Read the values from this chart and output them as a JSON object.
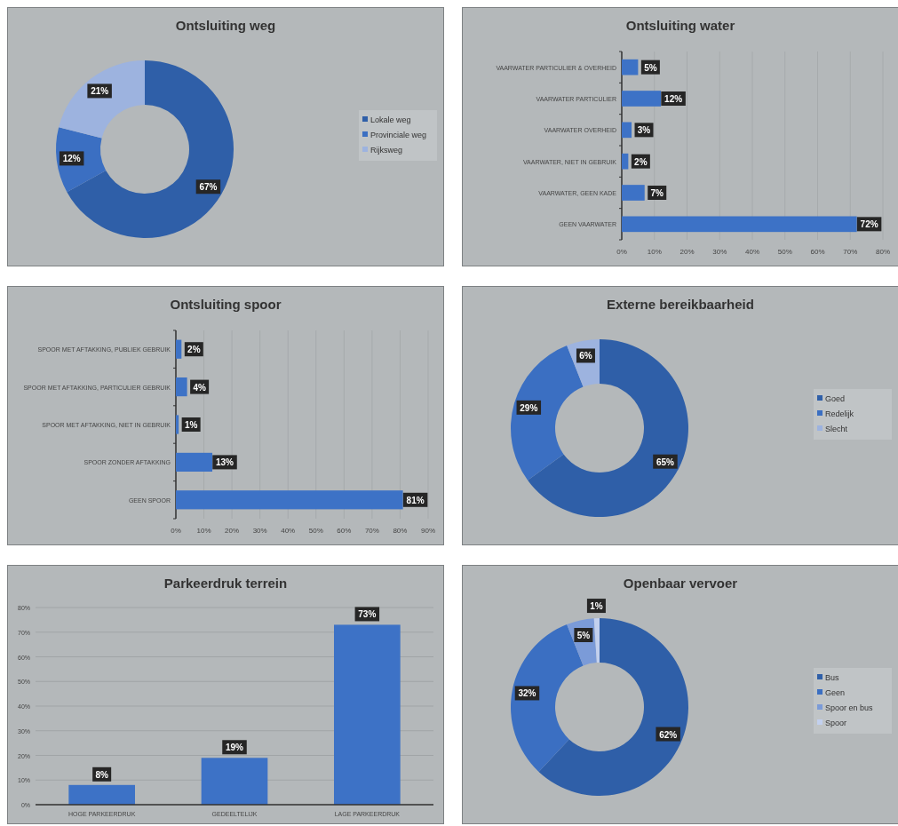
{
  "chart_data": [
    {
      "type": "donut",
      "title": "Ontsluiting weg",
      "categories": [
        "Lokale weg",
        "Provinciale weg",
        "Rijksweg"
      ],
      "values": [
        67,
        12,
        21
      ],
      "colors": [
        "#2f5fa8",
        "#3b6fc2",
        "#9db3df"
      ],
      "value_labels": [
        "67%",
        "12%",
        "21%"
      ],
      "legend": "right"
    },
    {
      "type": "bar",
      "orientation": "horizontal",
      "title": "Ontsluiting water",
      "categories": [
        "VAARWATER PARTICULIER & OVERHEID",
        "VAARWATER PARTICULIER",
        "VAARWATER OVERHEID",
        "VAARWATER, NIET IN GEBRUIK",
        "VAARWATER, GEEN KADE",
        "GEEN VAARWATER"
      ],
      "values": [
        5,
        12,
        3,
        2,
        7,
        72
      ],
      "color": "#3d72c6",
      "value_labels": [
        "5%",
        "12%",
        "3%",
        "2%",
        "7%",
        "72%"
      ],
      "xlim": [
        0,
        80
      ],
      "xticks": [
        {
          "value": 0,
          "label": "0%"
        },
        {
          "value": 10,
          "label": "10%"
        },
        {
          "value": 20,
          "label": "20%"
        },
        {
          "value": 30,
          "label": "30%"
        },
        {
          "value": 40,
          "label": "40%"
        },
        {
          "value": 50,
          "label": "50%"
        },
        {
          "value": 60,
          "label": "60%"
        },
        {
          "value": 70,
          "label": "70%"
        },
        {
          "value": 80,
          "label": "80%"
        }
      ],
      "grid": "x"
    },
    {
      "type": "bar",
      "orientation": "horizontal",
      "title": "Ontsluiting spoor",
      "categories": [
        "SPOOR MET AFTAKKING, PUBLIEK GEBRUIK",
        "SPOOR MET AFTAKKING, PARTICULIER GEBRUIK",
        "SPOOR MET AFTAKKING, NIET IN GEBRUIK",
        "SPOOR ZONDER AFTAKKING",
        "GEEN SPOOR"
      ],
      "values": [
        2,
        4,
        1,
        13,
        81
      ],
      "color": "#3d72c6",
      "value_labels": [
        "2%",
        "4%",
        "1%",
        "13%",
        "81%"
      ],
      "xlim": [
        0,
        90
      ],
      "xticks": [
        {
          "value": 0,
          "label": "0%"
        },
        {
          "value": 10,
          "label": "10%"
        },
        {
          "value": 20,
          "label": "20%"
        },
        {
          "value": 30,
          "label": "30%"
        },
        {
          "value": 40,
          "label": "40%"
        },
        {
          "value": 50,
          "label": "50%"
        },
        {
          "value": 60,
          "label": "60%"
        },
        {
          "value": 70,
          "label": "70%"
        },
        {
          "value": 80,
          "label": "80%"
        },
        {
          "value": 90,
          "label": "90%"
        }
      ],
      "grid": "x"
    },
    {
      "type": "donut",
      "title": "Externe bereikbaarheid",
      "categories": [
        "Goed",
        "Redelijk",
        "Slecht"
      ],
      "values": [
        65,
        29,
        6
      ],
      "colors": [
        "#2f5fa8",
        "#3b6fc2",
        "#9db3df"
      ],
      "value_labels": [
        "65%",
        "29%",
        "6%"
      ],
      "legend": "right"
    },
    {
      "type": "bar",
      "title": "Parkeerdruk terrein",
      "categories": [
        "HOGE PARKEERDRUK",
        "GEDEELTELIJK",
        "LAGE PARKEERDRUK"
      ],
      "values": [
        8,
        19,
        73
      ],
      "color": "#3d72c6",
      "value_labels": [
        "8%",
        "19%",
        "73%"
      ],
      "ylim": [
        0,
        80
      ],
      "yticks": [
        {
          "value": 0,
          "label": "0%"
        },
        {
          "value": 10,
          "label": "10%"
        },
        {
          "value": 20,
          "label": "20%"
        },
        {
          "value": 30,
          "label": "30%"
        },
        {
          "value": 40,
          "label": "40%"
        },
        {
          "value": 50,
          "label": "50%"
        },
        {
          "value": 60,
          "label": "60%"
        },
        {
          "value": 70,
          "label": "70%"
        },
        {
          "value": 80,
          "label": "80%"
        }
      ],
      "grid": "y"
    },
    {
      "type": "donut",
      "title": "Openbaar vervoer",
      "categories": [
        "Bus",
        "Geen",
        "Spoor en bus",
        "Spoor"
      ],
      "values": [
        62,
        32,
        5,
        1
      ],
      "colors": [
        "#2f5fa8",
        "#3b6fc2",
        "#7b9bd8",
        "#c2d0ee"
      ],
      "value_labels": [
        "62%",
        "32%",
        "5%",
        "1%"
      ],
      "legend": "right"
    }
  ]
}
